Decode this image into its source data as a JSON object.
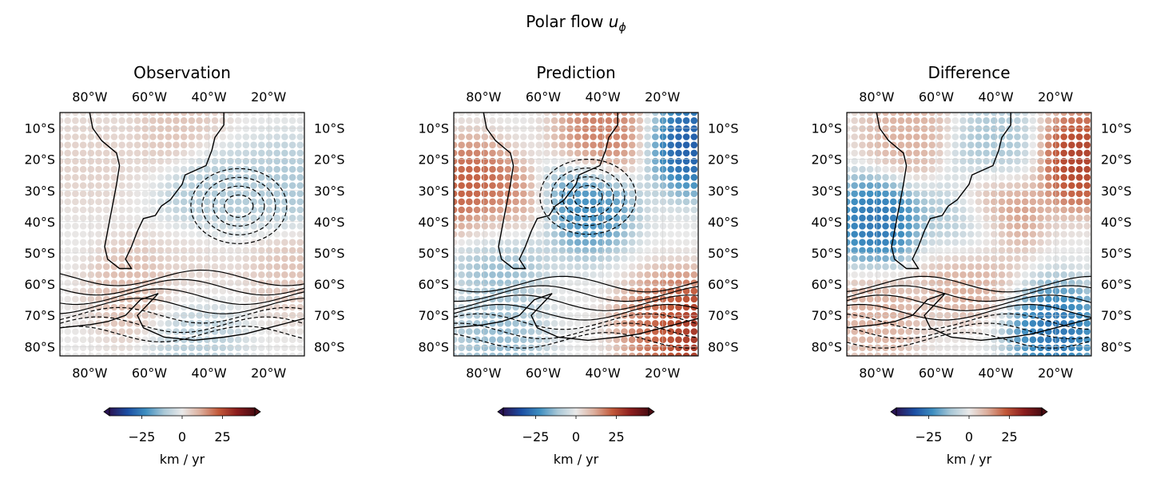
{
  "figure": {
    "title": "Polar flow ",
    "title_var": "u",
    "title_sub": "ϕ"
  },
  "panels": [
    {
      "title": "Observation"
    },
    {
      "title": "Prediction"
    },
    {
      "title": "Difference"
    }
  ],
  "axes": {
    "lon_ticks": [
      "80°W",
      "60°W",
      "40°W",
      "20°W"
    ],
    "lat_ticks": [
      "10°S",
      "20°S",
      "30°S",
      "40°S",
      "50°S",
      "60°S",
      "70°S",
      "80°S"
    ]
  },
  "colorbar": {
    "tick_labels": [
      "−25",
      "0",
      "25"
    ],
    "label": "km / yr",
    "colormap": [
      "#2a1455",
      "#1b4ea3",
      "#3e8ec0",
      "#a9c7d6",
      "#e9e9e9",
      "#dcae9c",
      "#c2593a",
      "#8c1d1d",
      "#4a0c12"
    ]
  },
  "chart_data": [
    {
      "type": "scatter",
      "title": "Observation",
      "lon_range": [
        -90,
        -8
      ],
      "lat_range": [
        -5,
        -83
      ],
      "value_range": [
        -45,
        45
      ],
      "grid_step_deg": 2.6,
      "field": [
        {
          "lon": -80,
          "lat": -20,
          "value": 5
        },
        {
          "lon": -50,
          "lat": -10,
          "value": 8
        },
        {
          "lon": -40,
          "lat": -30,
          "value": -12
        },
        {
          "lon": -15,
          "lat": -30,
          "value": -12
        },
        {
          "lon": -45,
          "lat": -55,
          "value": 4
        },
        {
          "lon": -12,
          "lat": -55,
          "value": 8
        },
        {
          "lon": -65,
          "lat": -62,
          "value": 10
        },
        {
          "lon": -45,
          "lat": -77,
          "value": -10
        }
      ]
    },
    {
      "type": "scatter",
      "title": "Prediction",
      "lon_range": [
        -90,
        -8
      ],
      "lat_range": [
        -5,
        -83
      ],
      "value_range": [
        -45,
        45
      ],
      "grid_step_deg": 2.6,
      "field": [
        {
          "lon": -40,
          "lat": -12,
          "value": 20
        },
        {
          "lon": -10,
          "lat": -15,
          "value": -35
        },
        {
          "lon": -85,
          "lat": -30,
          "value": 25
        },
        {
          "lon": -75,
          "lat": -38,
          "value": 22
        },
        {
          "lon": -45,
          "lat": -35,
          "value": -25
        },
        {
          "lon": -75,
          "lat": -48,
          "value": -20
        },
        {
          "lon": -20,
          "lat": -73,
          "value": 20
        },
        {
          "lon": -10,
          "lat": -75,
          "value": 35
        },
        {
          "lon": -75,
          "lat": -78,
          "value": -15
        }
      ]
    },
    {
      "type": "scatter",
      "title": "Difference",
      "lon_range": [
        -90,
        -8
      ],
      "lat_range": [
        -5,
        -83
      ],
      "value_range": [
        -45,
        45
      ],
      "grid_step_deg": 2.6,
      "field": [
        {
          "lon": -70,
          "lat": -12,
          "value": 12
        },
        {
          "lon": -40,
          "lat": -18,
          "value": -14
        },
        {
          "lon": -12,
          "lat": -20,
          "value": 30
        },
        {
          "lon": -80,
          "lat": -40,
          "value": -30
        },
        {
          "lon": -50,
          "lat": -42,
          "value": -18
        },
        {
          "lon": -40,
          "lat": -35,
          "value": 20
        },
        {
          "lon": -50,
          "lat": -55,
          "value": 15
        },
        {
          "lon": -80,
          "lat": -70,
          "value": 12
        },
        {
          "lon": -20,
          "lat": -75,
          "value": -30
        }
      ]
    }
  ]
}
